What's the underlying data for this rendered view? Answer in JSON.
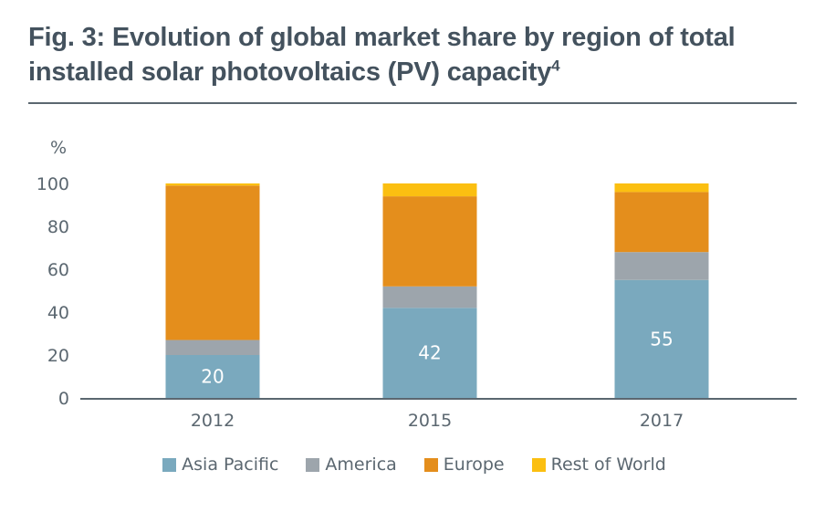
{
  "chart_data": {
    "type": "bar",
    "stacked": true,
    "title": "Fig. 3: Evolution of global market share by region of total installed solar photovoltaics (PV) capacity",
    "title_superscript": "4",
    "xlabel": "",
    "ylabel": "%",
    "ylim": [
      0,
      100
    ],
    "yticks": [
      0,
      20,
      40,
      60,
      80,
      100
    ],
    "grid": false,
    "legend_position": "bottom",
    "categories": [
      "2012",
      "2015",
      "2017"
    ],
    "series": [
      {
        "name": "Asia Pacific",
        "color": "#7aa9be",
        "values": [
          20,
          42,
          55
        ],
        "labels": [
          "20",
          "42",
          "55"
        ]
      },
      {
        "name": "America",
        "color": "#9da5ac",
        "values": [
          7,
          10,
          13
        ]
      },
      {
        "name": "Europe",
        "color": "#e48e1c",
        "values": [
          72,
          42,
          28
        ]
      },
      {
        "name": "Rest of World",
        "color": "#fbbf11",
        "values": [
          1,
          6,
          4
        ]
      }
    ]
  }
}
